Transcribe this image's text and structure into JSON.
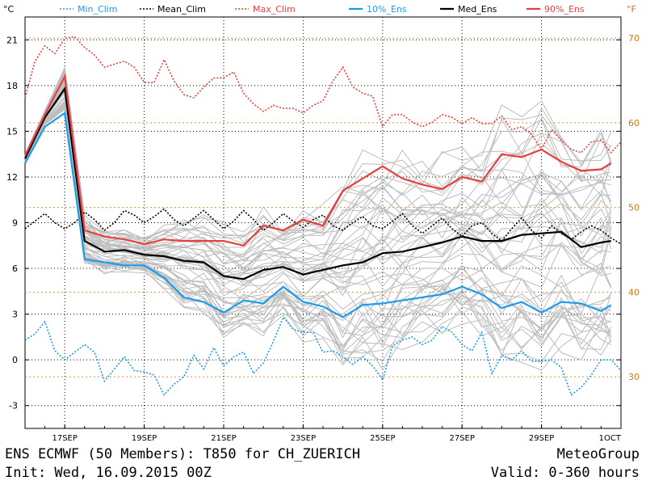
{
  "chart_data": {
    "type": "line",
    "title": "ENS ECMWF (50 Members): T850 for CH_ZUERICH",
    "init": "Init: Wed, 16.09.2015 00Z",
    "brand": "MeteoGroup",
    "valid": "Valid: 0-360 hours",
    "y_unit_left": "°C",
    "y_unit_right": "°F",
    "ylim": [
      -4.5,
      22.5
    ],
    "xlim_hours": [
      0,
      360
    ],
    "y_ticks": [
      -3,
      0,
      3,
      6,
      9,
      12,
      15,
      18,
      21
    ],
    "y_ticks_f": [
      30,
      40,
      50,
      60,
      70
    ],
    "x_ticks": [
      {
        "label": "17SEP",
        "hour": 24
      },
      {
        "label": "19SEP",
        "hour": 72
      },
      {
        "label": "21SEP",
        "hour": 120
      },
      {
        "label": "23SEP",
        "hour": 168
      },
      {
        "label": "25SEP",
        "hour": 216
      },
      {
        "label": "27SEP",
        "hour": 264
      },
      {
        "label": "29SEP",
        "hour": 312
      },
      {
        "label": "1OCT",
        "hour": 360
      }
    ],
    "series": [
      {
        "name": "Min_Clim",
        "color": "#1e9bea",
        "dashed": true,
        "label": "Min_Clim",
        "x": [
          0,
          6,
          12,
          18,
          24,
          30,
          36,
          42,
          48,
          54,
          60,
          66,
          72,
          78,
          84,
          90,
          96,
          102,
          108,
          114,
          120,
          126,
          132,
          138,
          144,
          150,
          156,
          162,
          168,
          174,
          180,
          186,
          192,
          198,
          204,
          210,
          216,
          222,
          228,
          234,
          240,
          246,
          252,
          258,
          264,
          270,
          276,
          282,
          288,
          294,
          300,
          306,
          312,
          318,
          324,
          330,
          336,
          342,
          348,
          354,
          360
        ],
        "values": [
          1.3,
          1.7,
          2.5,
          0.6,
          0,
          0.5,
          1.0,
          0.5,
          -1.4,
          -0.6,
          0.2,
          -0.7,
          -0.8,
          -1.0,
          -2.3,
          -1.6,
          -1.1,
          0.3,
          -0.6,
          0.8,
          -0.4,
          0.2,
          0.5,
          -0.9,
          -0.2,
          1.2,
          2.8,
          2.0,
          1.8,
          1.8,
          0.5,
          0.6,
          0.2,
          -0.3,
          0.2,
          -0.4,
          -1.3,
          0.9,
          1.3,
          1.5,
          1.0,
          1.3,
          2.2,
          1.8,
          1.0,
          0.6,
          1.8,
          -0.9,
          0.3,
          0.0,
          0.6,
          -0.1,
          -0.1,
          0.0,
          -0.5,
          -2.3,
          -1.8,
          -1.0,
          0.0,
          0.0,
          -0.7
        ]
      },
      {
        "name": "Mean_Clim",
        "color": "#000000",
        "dashed": true,
        "label": "Mean_Clim",
        "x": [
          0,
          6,
          12,
          18,
          24,
          30,
          36,
          42,
          48,
          54,
          60,
          66,
          72,
          78,
          84,
          90,
          96,
          102,
          108,
          114,
          120,
          126,
          132,
          138,
          144,
          150,
          156,
          162,
          168,
          174,
          180,
          186,
          192,
          198,
          204,
          210,
          216,
          222,
          228,
          234,
          240,
          246,
          252,
          258,
          264,
          270,
          276,
          282,
          288,
          294,
          300,
          306,
          312,
          318,
          324,
          330,
          336,
          342,
          348,
          354,
          360
        ],
        "values": [
          8.6,
          9.1,
          9.6,
          9.0,
          8.6,
          9.0,
          9.7,
          9.2,
          8.5,
          9.0,
          9.8,
          9.5,
          9.0,
          9.4,
          9.9,
          9.2,
          8.8,
          9.3,
          9.8,
          9.2,
          8.6,
          9.1,
          9.8,
          9.2,
          8.5,
          9.0,
          9.6,
          9.1,
          8.7,
          9.2,
          9.5,
          8.8,
          8.5,
          9.0,
          9.4,
          8.8,
          8.6,
          9.1,
          9.6,
          8.8,
          8.3,
          8.8,
          9.3,
          8.6,
          8.1,
          8.8,
          9.0,
          8.3,
          7.8,
          8.6,
          9.3,
          8.5,
          8.0,
          8.8,
          8.3,
          7.9,
          8.4,
          8.8,
          8.5,
          8.0,
          7.6
        ]
      },
      {
        "name": "Max_Clim",
        "color": "#e54040",
        "dashed": true,
        "label": "Max_Clim",
        "x": [
          0,
          6,
          12,
          18,
          24,
          30,
          36,
          42,
          48,
          54,
          60,
          66,
          72,
          78,
          84,
          90,
          96,
          102,
          108,
          114,
          120,
          126,
          132,
          138,
          144,
          150,
          156,
          162,
          168,
          174,
          180,
          186,
          192,
          198,
          204,
          210,
          216,
          222,
          228,
          234,
          240,
          246,
          252,
          258,
          264,
          270,
          276,
          282,
          288,
          294,
          300,
          306,
          312,
          318,
          324,
          330,
          336,
          342,
          348,
          354,
          360
        ],
        "values": [
          17.2,
          19.6,
          20.6,
          20.1,
          21.1,
          21.2,
          20.5,
          20.0,
          19.2,
          19.4,
          19.6,
          19.2,
          18.2,
          18.2,
          19.7,
          18.3,
          17.4,
          17.2,
          17.9,
          18.5,
          18.5,
          18.9,
          17.5,
          16.8,
          16.3,
          16.7,
          16.5,
          16.5,
          16.2,
          16.7,
          17.0,
          18.3,
          19.2,
          17.9,
          17.5,
          17.3,
          15.3,
          16.1,
          16.1,
          15.6,
          15.3,
          15.6,
          16.1,
          15.9,
          15.5,
          15.9,
          15.5,
          15.5,
          16.0,
          15.1,
          15.3,
          14.8,
          13.8,
          15.1,
          14.4,
          13.8,
          13.6,
          14.3,
          14.4,
          13.6,
          14.3
        ]
      },
      {
        "name": "10%_Ens",
        "color": "#1e9bea",
        "dashed": false,
        "label": "10%_Ens",
        "x": [
          0,
          12,
          24,
          36,
          48,
          60,
          72,
          84,
          96,
          108,
          120,
          132,
          144,
          156,
          168,
          180,
          192,
          204,
          216,
          228,
          240,
          252,
          264,
          276,
          288,
          300,
          312,
          324,
          336,
          348,
          354
        ],
        "values": [
          12.9,
          15.3,
          16.2,
          6.6,
          6.4,
          6.2,
          6.2,
          5.4,
          4.1,
          3.8,
          3.1,
          3.9,
          3.7,
          4.8,
          3.8,
          3.5,
          2.8,
          3.6,
          3.7,
          3.9,
          4.1,
          4.3,
          4.8,
          4.3,
          3.4,
          3.8,
          3.1,
          3.8,
          3.7,
          3.2,
          3.6
        ]
      },
      {
        "name": "Med_Ens",
        "color": "#000000",
        "dashed": false,
        "label": "Med_Ens",
        "x": [
          0,
          12,
          24,
          36,
          48,
          60,
          72,
          84,
          96,
          108,
          120,
          132,
          144,
          156,
          168,
          180,
          192,
          204,
          216,
          228,
          240,
          252,
          264,
          276,
          288,
          300,
          312,
          324,
          336,
          348,
          354
        ],
        "values": [
          13.2,
          15.9,
          17.8,
          7.8,
          7.1,
          7.2,
          6.9,
          6.8,
          6.5,
          6.4,
          5.5,
          5.3,
          5.9,
          6.1,
          5.6,
          5.9,
          6.2,
          6.4,
          7.0,
          7.1,
          7.4,
          7.7,
          8.1,
          7.8,
          7.8,
          8.2,
          8.3,
          8.4,
          7.4,
          7.7,
          7.8
        ]
      },
      {
        "name": "90%_Ens",
        "color": "#e54040",
        "dashed": false,
        "label": "90%_Ens",
        "x": [
          0,
          12,
          24,
          36,
          48,
          60,
          72,
          84,
          96,
          108,
          120,
          132,
          144,
          156,
          168,
          180,
          192,
          204,
          216,
          228,
          240,
          252,
          264,
          276,
          288,
          300,
          312,
          324,
          336,
          348,
          354
        ],
        "values": [
          13.4,
          16.1,
          18.6,
          8.5,
          8.1,
          7.9,
          7.6,
          7.9,
          7.8,
          7.8,
          7.8,
          7.5,
          8.8,
          8.5,
          9.2,
          8.8,
          11.1,
          11.9,
          12.7,
          11.9,
          11.5,
          11.2,
          12.0,
          11.7,
          13.5,
          13.3,
          13.8,
          13.0,
          12.4,
          12.5,
          12.9
        ]
      }
    ]
  }
}
